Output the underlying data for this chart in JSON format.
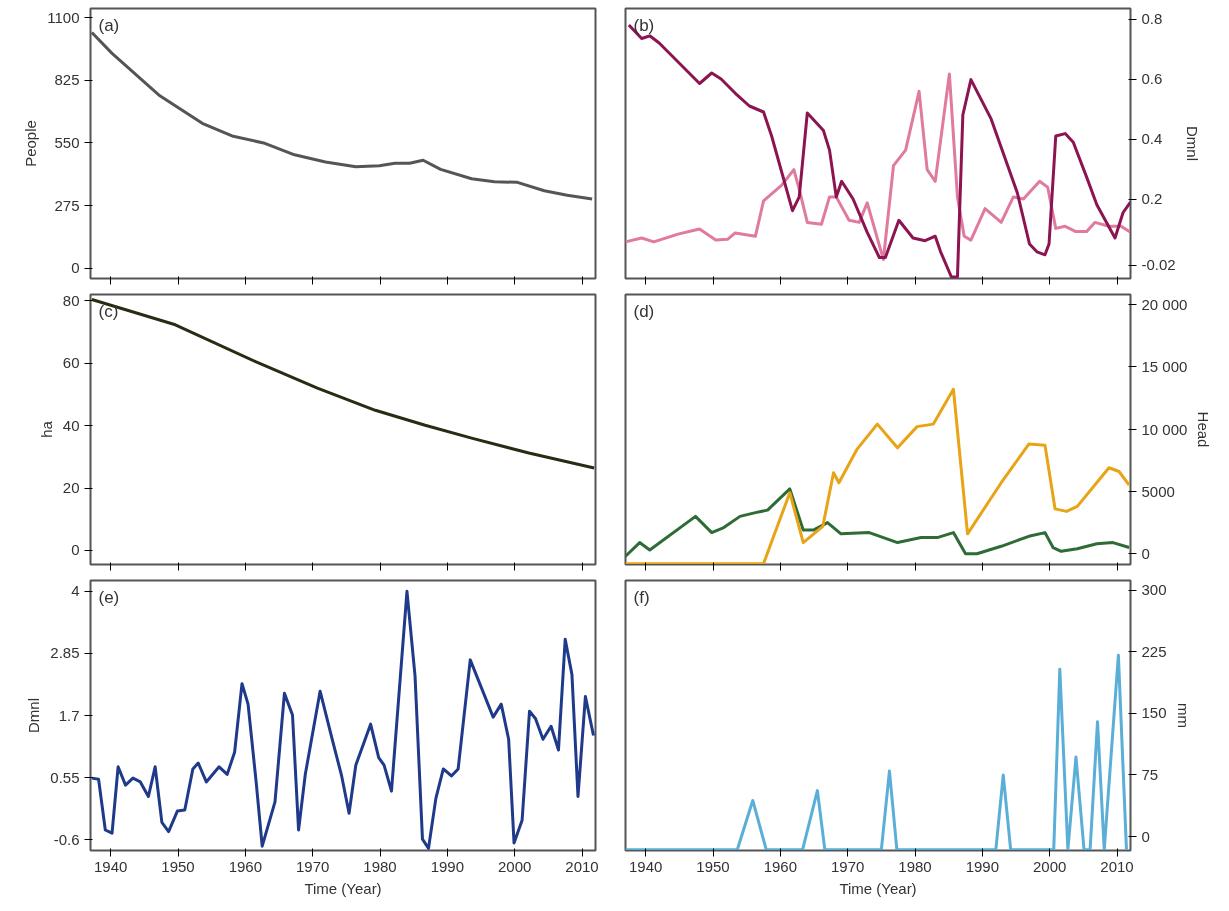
{
  "chart_data": [
    {
      "type": "line",
      "title": "(a)",
      "ylabel": "People",
      "xlim": [
        1937,
        2012
      ],
      "ylim": [
        -45,
        1140
      ],
      "xticks": [
        1940,
        1950,
        1960,
        1970,
        1980,
        1990,
        2000,
        2010
      ],
      "yticks": [
        0,
        275,
        550,
        825,
        1100
      ],
      "tick_labels": "y",
      "series": [
        {
          "color": "#555555",
          "x": [
            1937.2,
            1940.2,
            1947.3,
            1953.6,
            1958.2,
            1962.7,
            1967.3,
            1971.9,
            1976.4,
            1979.9,
            1982.2,
            1984.4,
            1986.4,
            1989,
            1993.6,
            1997,
            2000.4,
            2004.4,
            2007.8,
            2011.5
          ],
          "values": [
            1035,
            943,
            757,
            636,
            579,
            550,
            498,
            466,
            445,
            450,
            461,
            461,
            474,
            434,
            393,
            380,
            377,
            340,
            320,
            304
          ]
        }
      ]
    },
    {
      "type": "line",
      "title": "(b)",
      "ylabel": "Dmnl",
      "xlim": [
        1937,
        2012
      ],
      "ylim": [
        -0.065,
        0.835
      ],
      "xticks": [
        1940,
        1950,
        1960,
        1970,
        1980,
        1990,
        2000,
        2010
      ],
      "yticks": [
        -0.02,
        0.2,
        0.4,
        0.6,
        0.8
      ],
      "tick_labels": "y",
      "series": [
        {
          "color": "#e07a9e",
          "x": [
            1937,
            1939.4,
            1941.2,
            1944.8,
            1948,
            1950.4,
            1952.2,
            1953.3,
            1956.3,
            1957.5,
            1960.2,
            1962,
            1962.8,
            1964,
            1966.1,
            1967.3,
            1968.3,
            1970.2,
            1971.7,
            1972.9,
            1975.3,
            1976.8,
            1978.6,
            1980.6,
            1981.8,
            1983,
            1985.1,
            1986.3,
            1987.3,
            1988.3,
            1990.4,
            1992.8,
            1994.6,
            1996.1,
            1998.5,
            1999.7,
            2000.9,
            2002.3,
            2003.8,
            2005.5,
            2006.7,
            2008.8,
            2010.6,
            2012
          ],
          "values": [
            0.057,
            0.07,
            0.057,
            0.083,
            0.1,
            0.063,
            0.066,
            0.087,
            0.076,
            0.194,
            0.246,
            0.298,
            0.233,
            0.122,
            0.116,
            0.207,
            0.207,
            0.129,
            0.122,
            0.187,
            -0.002,
            0.311,
            0.363,
            0.559,
            0.298,
            0.259,
            0.617,
            0.207,
            0.076,
            0.063,
            0.168,
            0.122,
            0.207,
            0.2,
            0.259,
            0.239,
            0.102,
            0.109,
            0.092,
            0.092,
            0.122,
            0.109,
            0.109,
            0.089
          ]
        },
        {
          "color": "#8b1451",
          "x": [
            1937.5,
            1939.4,
            1940.6,
            1942,
            1948,
            1949.8,
            1951.2,
            1953.6,
            1955.4,
            1957.5,
            1958.7,
            1961.8,
            1962.8,
            1964,
            1966.4,
            1967.3,
            1968.3,
            1969.1,
            1970.8,
            1972.9,
            1974.7,
            1975.6,
            1977.6,
            1979.7,
            1981.5,
            1983,
            1983.8,
            1985.4,
            1986.3,
            1987.1,
            1988.3,
            1991.3,
            1995.2,
            1997,
            1998.1,
            1999.3,
            1999.9,
            2000.9,
            2002.3,
            2003.5,
            2005.5,
            2007,
            2009.7,
            2010.9,
            2012
          ],
          "values": [
            0.78,
            0.735,
            0.744,
            0.72,
            0.585,
            0.62,
            0.6,
            0.546,
            0.51,
            0.49,
            0.41,
            0.161,
            0.207,
            0.487,
            0.428,
            0.363,
            0.207,
            0.259,
            0.2,
            0.089,
            0.005,
            0.005,
            0.129,
            0.07,
            0.061,
            0.076,
            0.024,
            -0.06,
            -0.06,
            0.48,
            0.598,
            0.467,
            0.22,
            0.05,
            0.024,
            0.014,
            0.05,
            0.41,
            0.418,
            0.389,
            0.272,
            0.181,
            0.07,
            0.155,
            0.19
          ]
        }
      ]
    },
    {
      "type": "line",
      "title": "(c)",
      "ylabel": "ha",
      "xlim": [
        1937,
        2012
      ],
      "ylim": [
        -4.5,
        82
      ],
      "xticks": [
        1940,
        1950,
        1960,
        1970,
        1980,
        1990,
        2000,
        2010
      ],
      "yticks": [
        0,
        20,
        40,
        60,
        80
      ],
      "tick_labels": "y",
      "series": [
        {
          "color": "#2b2b14",
          "x": [
            1937.2,
            1949.6,
            1961.6,
            1970.7,
            1979.3,
            1986.7,
            1993.6,
            2002.1,
            2011.8
          ],
          "values": [
            80.4,
            72.3,
            60.4,
            52,
            44.9,
            40.1,
            36,
            31.2,
            26.4
          ]
        }
      ]
    },
    {
      "type": "line",
      "title": "(d)",
      "ylabel": "Head",
      "xlim": [
        1937,
        2012
      ],
      "ylim": [
        -860,
        20800
      ],
      "xticks": [
        1940,
        1950,
        1960,
        1970,
        1980,
        1990,
        2000,
        2010
      ],
      "yticks": [
        0,
        5000,
        {
          "value": 10000,
          "label": "10 000"
        },
        {
          "value": 15000,
          "label": "15 000"
        },
        {
          "value": 20000,
          "label": "20 000"
        }
      ],
      "tick_labels": "y",
      "series": [
        {
          "color": "#2e6b35",
          "x": [
            1937,
            1939.1,
            1940.6,
            1947.4,
            1949.8,
            1951.6,
            1954,
            1956.3,
            1958.1,
            1961.4,
            1963.4,
            1964.9,
            1967,
            1969,
            1973.2,
            1977.4,
            1980.9,
            1983.3,
            1985.7,
            1987.5,
            1989.2,
            1992.8,
            1996.9,
            1999.3,
            2000.5,
            2001.7,
            2004.1,
            2007,
            2009.4,
            2011.8
          ],
          "values": [
            -200,
            900,
            300,
            3000,
            1700,
            2100,
            3000,
            3300,
            3500,
            5200,
            1900,
            1900,
            2500,
            1600,
            1700,
            900,
            1300,
            1300,
            1700,
            0,
            0,
            600,
            1400,
            1700,
            500,
            200,
            400,
            800,
            900,
            500
          ]
        },
        {
          "color": "#e8a317",
          "x": [
            1937,
            1957.5,
            1959,
            1961.4,
            1963.4,
            1966.3,
            1967.9,
            1968.7,
            1971.4,
            1974.4,
            1977.4,
            1980.3,
            1982.7,
            1985.7,
            1987.8,
            1992.8,
            1996.9,
            1999.3,
            2000.8,
            2002.5,
            2004.1,
            2008.8,
            2010.3,
            2011.8
          ],
          "values": [
            -800,
            -800,
            1400,
            4900,
            900,
            2200,
            6500,
            5700,
            8400,
            10400,
            8500,
            10200,
            10400,
            13200,
            1600,
            5700,
            8800,
            8700,
            3600,
            3400,
            3800,
            6900,
            6600,
            5500
          ]
        }
      ]
    },
    {
      "type": "line",
      "title": "(e)",
      "ylabel": "Dmnl",
      "xlabel": "Time (Year)",
      "xlim": [
        1937,
        2012
      ],
      "ylim": [
        -0.8,
        4.2
      ],
      "xticks": [
        1940,
        1950,
        1960,
        1970,
        1980,
        1990,
        2000,
        2010
      ],
      "yticks": [
        -0.6,
        0.55,
        1.7,
        2.85,
        4
      ],
      "series": [
        {
          "color": "#1f3a8a",
          "x": [
            1937.2,
            1938.2,
            1939.2,
            1940.2,
            1941.1,
            1942.2,
            1943.3,
            1944.4,
            1945.6,
            1946.6,
            1947.6,
            1948.6,
            1949.9,
            1951,
            1952.2,
            1953,
            1954.2,
            1956.1,
            1957.3,
            1958.4,
            1959.5,
            1960.4,
            1961.6,
            1962.5,
            1964.4,
            1965.8,
            1967,
            1967.9,
            1968.9,
            1971.1,
            1972.9,
            1974.3,
            1975.4,
            1976.4,
            1978.6,
            1979.8,
            1980.6,
            1981.7,
            1984,
            1985.2,
            1986.3,
            1987.2,
            1988.3,
            1989.4,
            1990.6,
            1991.6,
            1993.4,
            1996.8,
            1998,
            1999.1,
            1999.9,
            2001.1,
            2002.2,
            2003.1,
            2004.2,
            2005.4,
            2006.5,
            2007.5,
            2008.5,
            2009.4,
            2010.5,
            2011.7
          ],
          "values": [
            0.54,
            0.52,
            -0.42,
            -0.48,
            0.75,
            0.41,
            0.54,
            0.47,
            0.2,
            0.75,
            -0.28,
            -0.45,
            -0.07,
            -0.05,
            0.71,
            0.82,
            0.47,
            0.75,
            0.61,
            1.02,
            2.29,
            1.91,
            0.47,
            -0.72,
            0.1,
            2.11,
            1.71,
            -0.42,
            0.61,
            2.15,
            1.26,
            0.58,
            -0.11,
            0.78,
            1.54,
            0.92,
            0.78,
            0.3,
            4.0,
            2.43,
            -0.59,
            -0.76,
            0.17,
            0.71,
            0.58,
            0.71,
            2.73,
            1.67,
            1.91,
            1.26,
            -0.66,
            -0.24,
            1.78,
            1.64,
            1.26,
            1.5,
            1.06,
            3.11,
            2.46,
            0.2,
            2.05,
            1.33
          ]
        }
      ]
    },
    {
      "type": "line",
      "title": "(f)",
      "ylabel": "mm",
      "xlabel": "Time (Year)",
      "xlim": [
        1937,
        2012
      ],
      "ylim": [
        -17,
        312
      ],
      "xticks": [
        1940,
        1950,
        1960,
        1970,
        1980,
        1990,
        2000,
        2010
      ],
      "yticks": [
        0,
        75,
        150,
        225,
        300
      ],
      "series": [
        {
          "color": "#5aaed8",
          "x": [
            1937,
            1953.6,
            1955.9,
            1957.9,
            1963.3,
            1965.5,
            1966.6,
            1975,
            1976.2,
            1977.3,
            1992,
            1993.1,
            1994.2,
            2000.6,
            2001.5,
            2002.7,
            2003.9,
            2005.1,
            2006,
            2007.1,
            2008.1,
            2010.2,
            2011.4
          ],
          "values": [
            -16,
            -16,
            44,
            -16,
            -16,
            56,
            -16,
            -16,
            80,
            -16,
            -16,
            75,
            -16,
            -16,
            204,
            -16,
            97,
            -16,
            -16,
            140,
            -16,
            221,
            -16
          ]
        }
      ]
    }
  ]
}
